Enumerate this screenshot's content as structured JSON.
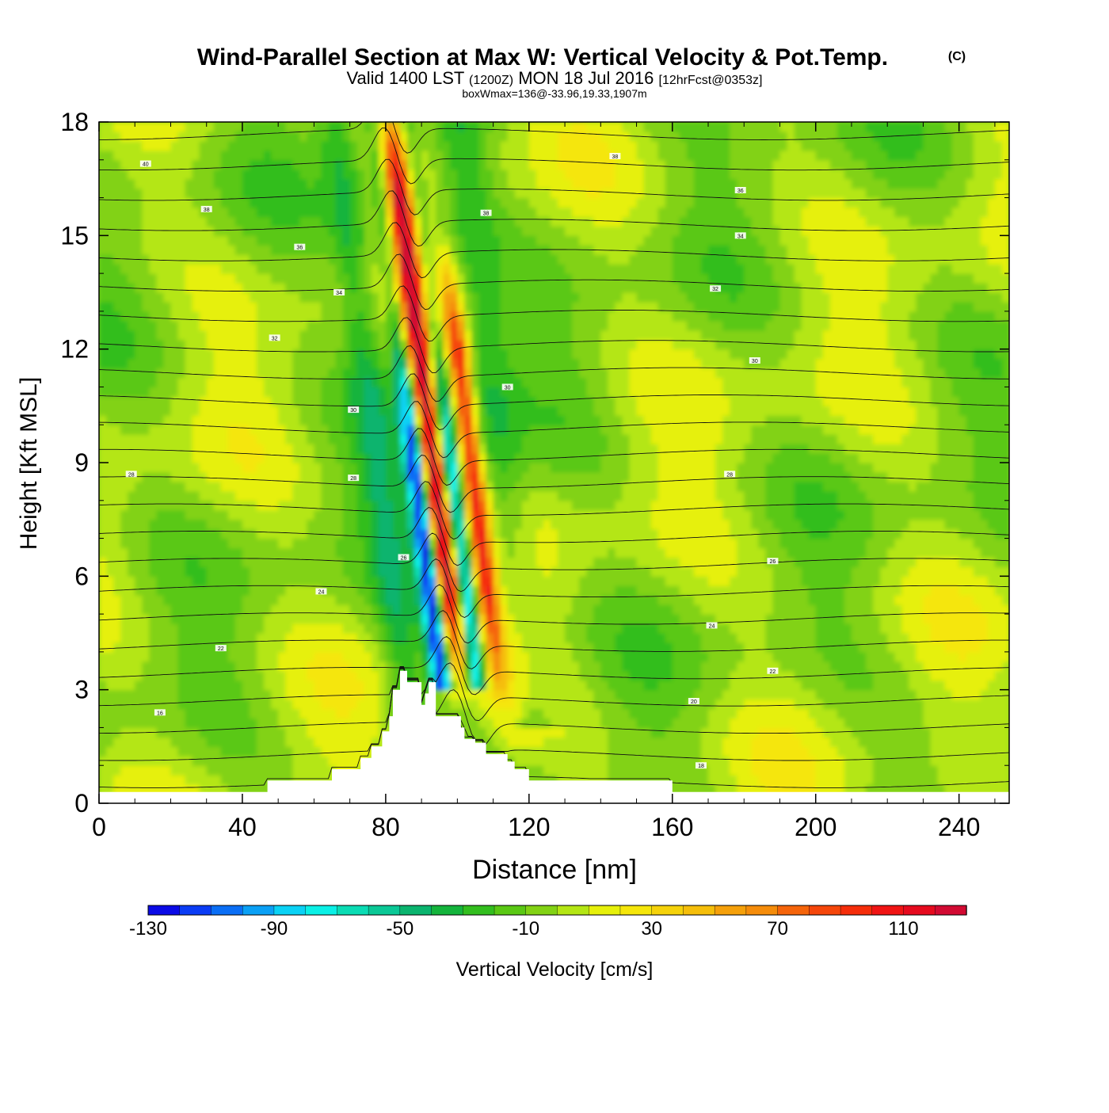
{
  "chart_data": {
    "type": "heatmap",
    "title": "Wind-Parallel Section at Max W: Vertical Velocity & Pot.Temp.",
    "copyright": "(C)",
    "subtitle_main_a": "Valid 1400 LST",
    "subtitle_small_a": "(1200Z)",
    "subtitle_main_b": "MON 18 Jul 2016",
    "subtitle_small_b": "[12hrFcst@0353z]",
    "subtitle_line3": "boxWmax=136@-33.96,19.33,1907m",
    "xlabel": "Distance [nm]",
    "ylabel": "Height [Kft MSL]",
    "xlim": [
      0,
      254
    ],
    "ylim": [
      0,
      18
    ],
    "xticks": [
      0,
      40,
      80,
      120,
      160,
      200,
      240
    ],
    "yticks": [
      0,
      3,
      6,
      9,
      12,
      15,
      18
    ],
    "colorbar": {
      "label": "Vertical Velocity [cm/s]",
      "range": [
        -130,
        130
      ],
      "step": 10,
      "tick_values": [
        -130,
        -90,
        -50,
        -10,
        30,
        70,
        110
      ],
      "colors": [
        "#0a0ae6",
        "#0a3cf5",
        "#0a6ef5",
        "#0aa0f5",
        "#0ad2f5",
        "#0af0e6",
        "#0adcb4",
        "#0ac896",
        "#0ab46e",
        "#14b43c",
        "#32be1e",
        "#5ac814",
        "#82d214",
        "#b4e614",
        "#e6f00a",
        "#f5e60a",
        "#f5d20a",
        "#f5be0a",
        "#f5a00a",
        "#f58c0a",
        "#f5640a",
        "#f5460a",
        "#f52d0a",
        "#f01414",
        "#e60a1e",
        "#d20a32"
      ]
    },
    "series": [
      {
        "name": "Vertical velocity maxima (updraft ridges)",
        "x": [
          93,
          104
        ],
        "peak": 136
      },
      {
        "name": "Vertical velocity minima (downdraft bands)",
        "x": [
          88,
          98
        ],
        "min": -120
      }
    ],
    "terrain": {
      "name": "Terrain (Kft MSL)",
      "x": [
        0,
        47,
        47,
        65,
        65,
        73,
        73,
        76,
        76,
        79,
        79,
        81,
        81,
        82,
        82,
        84,
        84,
        86,
        86,
        90,
        90,
        91,
        91,
        92,
        92,
        94,
        94,
        101,
        101,
        102,
        102,
        105,
        105,
        108,
        108,
        114,
        114,
        116,
        116,
        120,
        120,
        144,
        144,
        160,
        160,
        168,
        168,
        254
      ],
      "h": [
        0.3,
        0.3,
        0.6,
        0.6,
        0.9,
        0.9,
        1.2,
        1.2,
        1.5,
        1.5,
        1.9,
        1.9,
        2.3,
        2.3,
        3.0,
        3.0,
        3.5,
        3.5,
        3.2,
        3.2,
        2.6,
        2.6,
        2.9,
        2.9,
        3.2,
        3.2,
        2.3,
        2.3,
        2.0,
        2.0,
        1.7,
        1.7,
        1.6,
        1.6,
        1.3,
        1.3,
        1.1,
        1.1,
        0.9,
        0.9,
        0.6,
        0.6,
        0.6,
        0.6,
        0.3,
        0.3,
        0.3,
        0.3
      ]
    },
    "pot_temp_contours": [
      {
        "theta": 16,
        "label": "16",
        "lx": 17,
        "ly": 2.4
      },
      {
        "theta": 18,
        "label": "18",
        "lx": 168,
        "ly": 1.0
      },
      {
        "theta": 20,
        "label": "20",
        "lx": 166,
        "ly": 2.7
      },
      {
        "theta": 22,
        "label": "22",
        "lx": 34,
        "ly": 4.1
      },
      {
        "theta": 22,
        "label": "22",
        "lx": 188,
        "ly": 3.5
      },
      {
        "theta": 24,
        "label": "24",
        "lx": 62,
        "ly": 5.6
      },
      {
        "theta": 24,
        "label": "24",
        "lx": 171,
        "ly": 4.7
      },
      {
        "theta": 26,
        "label": "26",
        "lx": 85,
        "ly": 6.5
      },
      {
        "theta": 26,
        "label": "26",
        "lx": 188,
        "ly": 6.4
      },
      {
        "theta": 28,
        "label": "28",
        "lx": 9,
        "ly": 8.7
      },
      {
        "theta": 28,
        "label": "28",
        "lx": 71,
        "ly": 8.6
      },
      {
        "theta": 28,
        "label": "28",
        "lx": 176,
        "ly": 8.7
      },
      {
        "theta": 30,
        "label": "30",
        "lx": 71,
        "ly": 10.4
      },
      {
        "theta": 30,
        "label": "30",
        "lx": 114,
        "ly": 11.0
      },
      {
        "theta": 30,
        "label": "30",
        "lx": 183,
        "ly": 11.7
      },
      {
        "theta": 32,
        "label": "32",
        "lx": 49,
        "ly": 12.3
      },
      {
        "theta": 32,
        "label": "32",
        "lx": 172,
        "ly": 13.6
      },
      {
        "theta": 34,
        "label": "34",
        "lx": 67,
        "ly": 13.5
      },
      {
        "theta": 34,
        "label": "34",
        "lx": 179,
        "ly": 15.0
      },
      {
        "theta": 36,
        "label": "36",
        "lx": 56,
        "ly": 14.7
      },
      {
        "theta": 36,
        "label": "36",
        "lx": 179,
        "ly": 16.2
      },
      {
        "theta": 38,
        "label": "38",
        "lx": 30,
        "ly": 15.7
      },
      {
        "theta": 38,
        "label": "38",
        "lx": 108,
        "ly": 15.6
      },
      {
        "theta": 38,
        "label": "38",
        "lx": 144,
        "ly": 17.1
      },
      {
        "theta": 40,
        "label": "40",
        "lx": 13,
        "ly": 16.9
      }
    ]
  }
}
